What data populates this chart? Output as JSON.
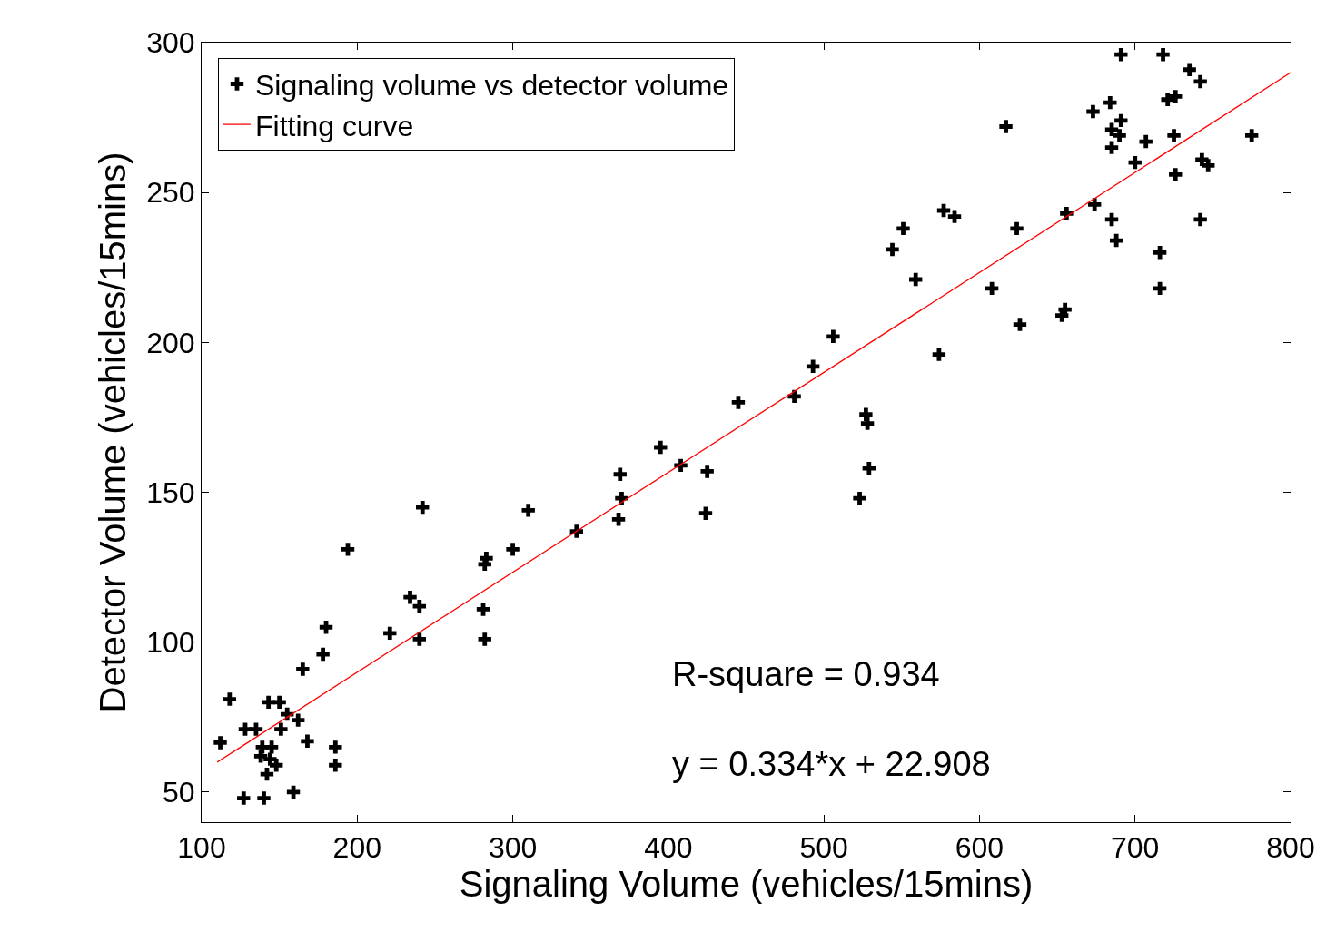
{
  "chart_data": {
    "type": "scatter",
    "xlabel": "Signaling Volume (vehicles/15mins)",
    "ylabel": "Detector Volume (vehicles/15mins)",
    "xlim": [
      100,
      800
    ],
    "xticks": [
      100,
      200,
      300,
      400,
      500,
      600,
      700,
      800
    ],
    "ylim": [
      40,
      300
    ],
    "yticks": [
      50,
      100,
      150,
      200,
      250,
      300
    ],
    "legend": "top left",
    "marker": "cross",
    "series": [
      {
        "name": "Signaling volume vs detector volume",
        "color": "#000000",
        "x": [
          112,
          118,
          128,
          127,
          140,
          135,
          138,
          143,
          150,
          145,
          142,
          148,
          139,
          144,
          151,
          155,
          159,
          162,
          168,
          165,
          178,
          180,
          186,
          186,
          194,
          221,
          234,
          240,
          240,
          242,
          282,
          283,
          281,
          282,
          300,
          310,
          341,
          369,
          370,
          368,
          395,
          408,
          425,
          424,
          445,
          481,
          493,
          506,
          523,
          527,
          528,
          529,
          544,
          551,
          559,
          574,
          577,
          584,
          608,
          624,
          626,
          617,
          653,
          655,
          656,
          673,
          674,
          684,
          685,
          685,
          685,
          688,
          691,
          691,
          690,
          700,
          707,
          718,
          716,
          716,
          721,
          726,
          725,
          726,
          735,
          742,
          742,
          743,
          747,
          775
        ],
        "values": [
          66.5,
          81,
          71,
          48,
          48,
          71,
          62,
          80,
          80,
          65,
          56,
          59,
          65,
          61,
          71,
          76,
          50,
          74,
          67,
          91,
          96,
          105,
          65,
          59,
          131,
          103,
          115,
          112,
          101,
          145,
          126,
          128,
          111,
          101,
          131,
          144,
          137,
          156,
          148,
          141,
          165,
          159,
          157,
          143,
          180,
          182,
          192,
          202,
          148,
          176,
          173,
          158,
          231,
          238,
          221,
          196,
          244,
          242,
          218,
          238,
          206,
          272,
          209,
          211,
          243,
          277,
          246,
          280,
          271,
          265,
          241,
          234,
          296,
          274,
          269,
          260,
          267,
          296,
          230,
          218,
          281,
          282,
          269,
          256,
          291,
          287,
          241,
          261,
          259,
          269
        ]
      },
      {
        "name": "Fitting curve",
        "color": "#ff0000",
        "type": "line",
        "marker": "none",
        "x": [
          110,
          800
        ],
        "values": [
          60,
          290
        ]
      }
    ],
    "annotations": [
      "R-square = 0.934",
      "y = 0.334*x + 22.908"
    ]
  }
}
